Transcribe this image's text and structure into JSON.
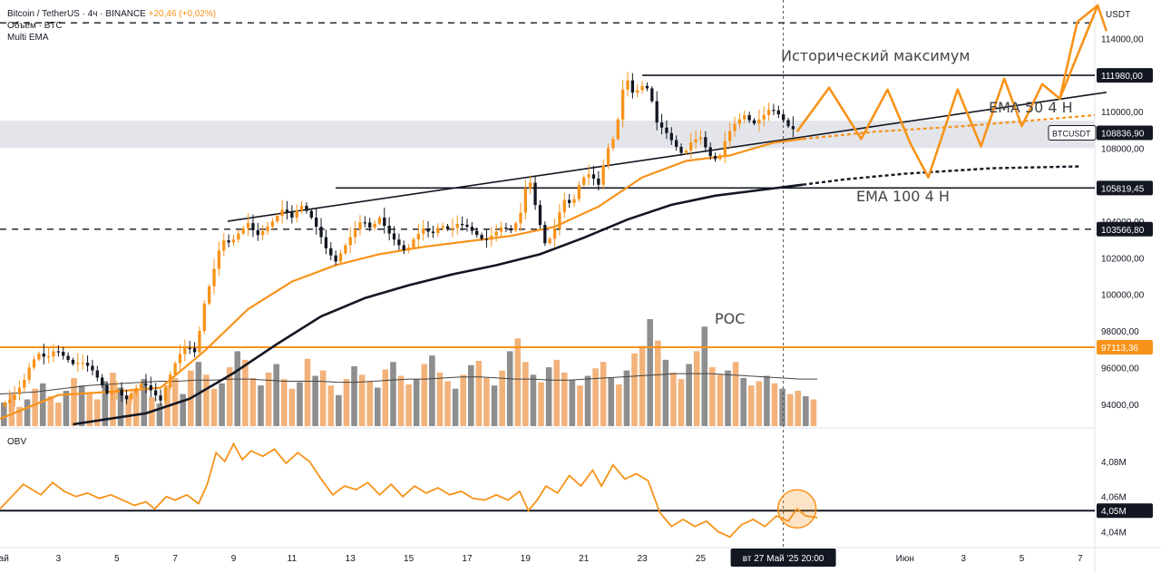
{
  "legend": {
    "line1": "Bitcoin / TetherUS · 4ч · BINANCE",
    "change": "+20,46 (+0,02%)",
    "line2": "Объём · BTC",
    "line3": "Multi EMA"
  },
  "annotations": {
    "ath": "Исторический максимум",
    "ema50": "EMA 50 4 H",
    "ema100": "EMA 100 4 H",
    "poc": "POC"
  },
  "colors": {
    "orange": "#f7931a",
    "candle_up": "#f7931a",
    "candle_down": "#131722",
    "ema100": "#131722",
    "grey_zone": "#d1d4dc",
    "vol_up": "#f2b27a",
    "vol_down": "#8e8e8e"
  },
  "chart_data": [
    {
      "type": "candlestick",
      "title": "",
      "currency_label": "USDT",
      "ylim": [
        92800,
        115800
      ],
      "y_ticks": [
        94000,
        96000,
        98000,
        100000,
        102000,
        104000,
        106000,
        108000,
        110000,
        114000
      ],
      "y_tick_labels": [
        "94000,00",
        "96000,00",
        "98000,00",
        "100000,00",
        "102000,00",
        "104000,00",
        "106000,00",
        "108000,00",
        "110000,00",
        "114000,00"
      ],
      "price_labels": [
        {
          "value": 111980,
          "label": "111980,00",
          "style": "dark"
        },
        {
          "value": 108836.9,
          "label": "108836,90",
          "style": "dark"
        },
        {
          "value": 105819.45,
          "label": "105819,45",
          "style": "dark"
        },
        {
          "value": 103566.8,
          "label": "103566,80",
          "style": "dark"
        },
        {
          "value": 97113.36,
          "label": "97113,36",
          "style": "orange"
        }
      ],
      "symbol_tag": "BTCUSDT",
      "x_day_range": [
        1,
        38.5
      ],
      "x_ticks": [
        {
          "day": 1,
          "label": "Май"
        },
        {
          "day": 3,
          "label": "3"
        },
        {
          "day": 5,
          "label": "5"
        },
        {
          "day": 7,
          "label": "7"
        },
        {
          "day": 9,
          "label": "9"
        },
        {
          "day": 11,
          "label": "11"
        },
        {
          "day": 13,
          "label": "13"
        },
        {
          "day": 15,
          "label": "15"
        },
        {
          "day": 17,
          "label": "17"
        },
        {
          "day": 19,
          "label": "19"
        },
        {
          "day": 21,
          "label": "21"
        },
        {
          "day": 23,
          "label": "23"
        },
        {
          "day": 25,
          "label": "25"
        },
        {
          "day": 32,
          "label": "Июн"
        },
        {
          "day": 34,
          "label": "3"
        },
        {
          "day": 36,
          "label": "5"
        },
        {
          "day": 38,
          "label": "7"
        }
      ],
      "cursor": {
        "day": 27.83,
        "label": "вт 27 Май '25   20:00"
      },
      "close_path": [
        [
          1.0,
          93900
        ],
        [
          1.4,
          94300
        ],
        [
          1.8,
          95200
        ],
        [
          2.0,
          96000
        ],
        [
          2.3,
          96800
        ],
        [
          2.6,
          96500
        ],
        [
          2.9,
          97000
        ],
        [
          3.2,
          96600
        ],
        [
          3.5,
          96200
        ],
        [
          3.8,
          96300
        ],
        [
          4.1,
          96000
        ],
        [
          4.4,
          95300
        ],
        [
          4.7,
          94500
        ],
        [
          5.0,
          94800
        ],
        [
          5.3,
          94200
        ],
        [
          5.6,
          94800
        ],
        [
          5.9,
          95200
        ],
        [
          6.2,
          94700
        ],
        [
          6.5,
          94200
        ],
        [
          6.8,
          95500
        ],
        [
          7.1,
          96600
        ],
        [
          7.4,
          97200
        ],
        [
          7.7,
          96800
        ],
        [
          8.0,
          99500
        ],
        [
          8.3,
          101200
        ],
        [
          8.6,
          103000
        ],
        [
          8.9,
          102800
        ],
        [
          9.2,
          103400
        ],
        [
          9.5,
          103900
        ],
        [
          9.8,
          103200
        ],
        [
          10.1,
          103600
        ],
        [
          10.4,
          104100
        ],
        [
          10.7,
          104700
        ],
        [
          11.0,
          104200
        ],
        [
          11.3,
          104900
        ],
        [
          11.6,
          104400
        ],
        [
          11.9,
          103500
        ],
        [
          12.2,
          102400
        ],
        [
          12.5,
          101800
        ],
        [
          12.8,
          102600
        ],
        [
          13.1,
          103400
        ],
        [
          13.4,
          104100
        ],
        [
          13.7,
          103600
        ],
        [
          14.0,
          104200
        ],
        [
          14.3,
          103400
        ],
        [
          14.6,
          102800
        ],
        [
          14.9,
          102300
        ],
        [
          15.2,
          103100
        ],
        [
          15.5,
          103600
        ],
        [
          15.8,
          103300
        ],
        [
          16.1,
          103800
        ],
        [
          16.4,
          103500
        ],
        [
          16.7,
          103900
        ],
        [
          17.0,
          103700
        ],
        [
          17.3,
          103300
        ],
        [
          17.6,
          102900
        ],
        [
          17.9,
          103300
        ],
        [
          18.2,
          103700
        ],
        [
          18.5,
          103500
        ],
        [
          18.8,
          104200
        ],
        [
          19.1,
          106600
        ],
        [
          19.4,
          104400
        ],
        [
          19.7,
          102600
        ],
        [
          20.0,
          103600
        ],
        [
          20.3,
          105200
        ],
        [
          20.6,
          104900
        ],
        [
          20.9,
          106300
        ],
        [
          21.2,
          106600
        ],
        [
          21.5,
          106000
        ],
        [
          21.8,
          107900
        ],
        [
          22.1,
          108800
        ],
        [
          22.3,
          111100
        ],
        [
          22.5,
          111700
        ],
        [
          22.7,
          110900
        ],
        [
          22.9,
          111300
        ],
        [
          23.1,
          111500
        ],
        [
          23.3,
          110800
        ],
        [
          23.5,
          109400
        ],
        [
          23.8,
          108900
        ],
        [
          24.1,
          108200
        ],
        [
          24.4,
          107600
        ],
        [
          24.7,
          108400
        ],
        [
          25.0,
          108600
        ],
        [
          25.3,
          107600
        ],
        [
          25.6,
          107300
        ],
        [
          25.9,
          108700
        ],
        [
          26.2,
          109400
        ],
        [
          26.5,
          109800
        ],
        [
          26.8,
          109300
        ],
        [
          27.1,
          109700
        ],
        [
          27.4,
          110200
        ],
        [
          27.7,
          109800
        ],
        [
          28.0,
          109200
        ],
        [
          28.3,
          108900
        ]
      ],
      "ema50": [
        [
          1.0,
          93200
        ],
        [
          3.0,
          94500
        ],
        [
          5.0,
          94700
        ],
        [
          6.5,
          94900
        ],
        [
          8.0,
          96900
        ],
        [
          9.5,
          99200
        ],
        [
          11.0,
          100700
        ],
        [
          12.5,
          101600
        ],
        [
          14.0,
          102200
        ],
        [
          15.5,
          102600
        ],
        [
          17.0,
          102900
        ],
        [
          18.5,
          103200
        ],
        [
          20.0,
          103700
        ],
        [
          21.5,
          104800
        ],
        [
          23.0,
          106400
        ],
        [
          24.5,
          107300
        ],
        [
          26.0,
          107600
        ],
        [
          27.5,
          108300
        ],
        [
          28.5,
          108500
        ]
      ],
      "ema100": [
        [
          3.5,
          92900
        ],
        [
          6.0,
          93500
        ],
        [
          7.5,
          94300
        ],
        [
          9.0,
          95700
        ],
        [
          10.5,
          97300
        ],
        [
          12.0,
          98800
        ],
        [
          13.5,
          99800
        ],
        [
          15.0,
          100500
        ],
        [
          16.5,
          101100
        ],
        [
          18.0,
          101600
        ],
        [
          19.5,
          102200
        ],
        [
          21.0,
          103100
        ],
        [
          22.5,
          104100
        ],
        [
          24.0,
          104900
        ],
        [
          25.5,
          105400
        ],
        [
          27.0,
          105700
        ],
        [
          28.5,
          106000
        ]
      ],
      "ema50_projection": [
        [
          28.5,
          108500
        ],
        [
          31.0,
          108900
        ],
        [
          34.0,
          109200
        ],
        [
          37.0,
          109600
        ],
        [
          38.5,
          109800
        ]
      ],
      "ema100_projection": [
        [
          28.5,
          106000
        ],
        [
          30.0,
          106300
        ],
        [
          32.0,
          106600
        ],
        [
          35.0,
          106900
        ],
        [
          38.0,
          107000
        ]
      ],
      "forecast_zigzag": [
        [
          28.3,
          108900
        ],
        [
          29.4,
          111300
        ],
        [
          30.5,
          108500
        ],
        [
          31.4,
          111200
        ],
        [
          32.2,
          108200
        ],
        [
          32.8,
          106400
        ],
        [
          33.8,
          111200
        ],
        [
          34.6,
          108100
        ],
        [
          35.4,
          111800
        ],
        [
          36.0,
          109200
        ],
        [
          36.7,
          111500
        ],
        [
          37.3,
          110700
        ],
        [
          37.9,
          114900
        ],
        [
          38.6,
          115800
        ],
        [
          38.9,
          114400
        ]
      ],
      "levels": [
        {
          "name": "all-time-high",
          "value": 111980,
          "from_day": 23.0,
          "to_day": 38.9
        },
        {
          "name": "level-105819",
          "value": 105819.45,
          "from_day": 12.5,
          "to_day": 38.9
        },
        {
          "name": "level-103566",
          "value": 103566.8,
          "from_day": 1.0,
          "to_day": 38.9,
          "dashed": true
        },
        {
          "name": "poc",
          "value": 97113.36,
          "from_day": 1.0,
          "to_day": 38.9
        },
        {
          "name": "target",
          "value": 114850,
          "from_day": 1.0,
          "to_day": 38.9,
          "dashed": true
        }
      ],
      "trendline": [
        [
          8.8,
          104000
        ],
        [
          38.9,
          111050
        ]
      ],
      "grey_zone": [
        108000,
        109500
      ],
      "volume": {
        "max": 100,
        "bars": [
          22,
          30,
          18,
          25,
          35,
          40,
          28,
          22,
          33,
          45,
          38,
          30,
          25,
          42,
          50,
          36,
          29,
          33,
          44,
          27,
          21,
          38,
          45,
          30,
          52,
          60,
          48,
          35,
          40,
          55,
          70,
          62,
          45,
          38,
          50,
          58,
          44,
          35,
          41,
          63,
          47,
          52,
          38,
          29,
          44,
          56,
          48,
          42,
          36,
          53,
          60,
          47,
          39,
          44,
          58,
          66,
          50,
          42,
          35,
          48,
          57,
          61,
          45,
          38,
          52,
          70,
          82,
          60,
          48,
          41,
          55,
          62,
          50,
          43,
          38,
          47,
          54,
          60,
          45,
          39,
          52,
          68,
          75,
          100,
          80,
          62,
          50,
          44,
          58,
          70,
          93,
          55,
          48,
          52,
          60,
          45,
          38,
          42,
          47,
          40,
          35,
          30,
          33,
          28,
          25
        ],
        "ma": [
          30,
          31,
          32,
          34,
          36,
          38,
          39,
          40,
          41,
          42,
          42,
          43,
          43,
          44,
          44,
          43,
          42,
          42,
          42,
          41,
          41,
          42,
          43,
          44,
          44,
          45,
          46,
          46,
          45,
          44,
          44,
          43,
          43,
          44,
          45,
          46,
          47,
          48,
          49,
          49,
          49,
          48,
          47,
          46,
          45,
          44,
          44
        ]
      },
      "obv": {
        "label": "OBV",
        "ylim": [
          4.033,
          4.096
        ],
        "y_ticks": [
          4.04,
          4.06,
          4.08
        ],
        "y_tick_labels": [
          "4,04M",
          "4,06M",
          "4,08M"
        ],
        "current_label": "4,05M",
        "current_value": 4.052,
        "points": [
          [
            1.0,
            4.053
          ],
          [
            1.4,
            4.06
          ],
          [
            1.8,
            4.067
          ],
          [
            2.1,
            4.064
          ],
          [
            2.4,
            4.061
          ],
          [
            2.8,
            4.068
          ],
          [
            3.2,
            4.063
          ],
          [
            3.6,
            4.06
          ],
          [
            4.0,
            4.062
          ],
          [
            4.4,
            4.059
          ],
          [
            4.8,
            4.061
          ],
          [
            5.2,
            4.058
          ],
          [
            5.6,
            4.055
          ],
          [
            6.0,
            4.057
          ],
          [
            6.3,
            4.053
          ],
          [
            6.7,
            4.06
          ],
          [
            7.0,
            4.058
          ],
          [
            7.4,
            4.061
          ],
          [
            7.8,
            4.056
          ],
          [
            8.1,
            4.067
          ],
          [
            8.4,
            4.085
          ],
          [
            8.7,
            4.08
          ],
          [
            9.0,
            4.09
          ],
          [
            9.3,
            4.081
          ],
          [
            9.6,
            4.086
          ],
          [
            10.0,
            4.083
          ],
          [
            10.4,
            4.087
          ],
          [
            10.8,
            4.079
          ],
          [
            11.2,
            4.085
          ],
          [
            11.6,
            4.08
          ],
          [
            12.0,
            4.07
          ],
          [
            12.4,
            4.061
          ],
          [
            12.8,
            4.066
          ],
          [
            13.2,
            4.064
          ],
          [
            13.6,
            4.068
          ],
          [
            14.0,
            4.061
          ],
          [
            14.4,
            4.067
          ],
          [
            14.8,
            4.06
          ],
          [
            15.2,
            4.066
          ],
          [
            15.6,
            4.062
          ],
          [
            16.0,
            4.065
          ],
          [
            16.4,
            4.061
          ],
          [
            16.8,
            4.063
          ],
          [
            17.2,
            4.059
          ],
          [
            17.6,
            4.058
          ],
          [
            18.0,
            4.061
          ],
          [
            18.4,
            4.058
          ],
          [
            18.8,
            4.063
          ],
          [
            19.1,
            4.052
          ],
          [
            19.4,
            4.058
          ],
          [
            19.7,
            4.066
          ],
          [
            20.1,
            4.062
          ],
          [
            20.5,
            4.072
          ],
          [
            20.9,
            4.066
          ],
          [
            21.3,
            4.075
          ],
          [
            21.6,
            4.066
          ],
          [
            22.0,
            4.078
          ],
          [
            22.4,
            4.07
          ],
          [
            22.8,
            4.073
          ],
          [
            23.2,
            4.069
          ],
          [
            23.6,
            4.051
          ],
          [
            24.0,
            4.043
          ],
          [
            24.4,
            4.047
          ],
          [
            24.8,
            4.043
          ],
          [
            25.2,
            4.046
          ],
          [
            25.6,
            4.04
          ],
          [
            26.0,
            4.037
          ],
          [
            26.4,
            4.044
          ],
          [
            26.8,
            4.047
          ],
          [
            27.2,
            4.043
          ],
          [
            27.6,
            4.049
          ],
          [
            28.0,
            4.046
          ],
          [
            28.3,
            4.053
          ],
          [
            28.6,
            4.049
          ],
          [
            29.0,
            4.048
          ]
        ]
      }
    }
  ]
}
